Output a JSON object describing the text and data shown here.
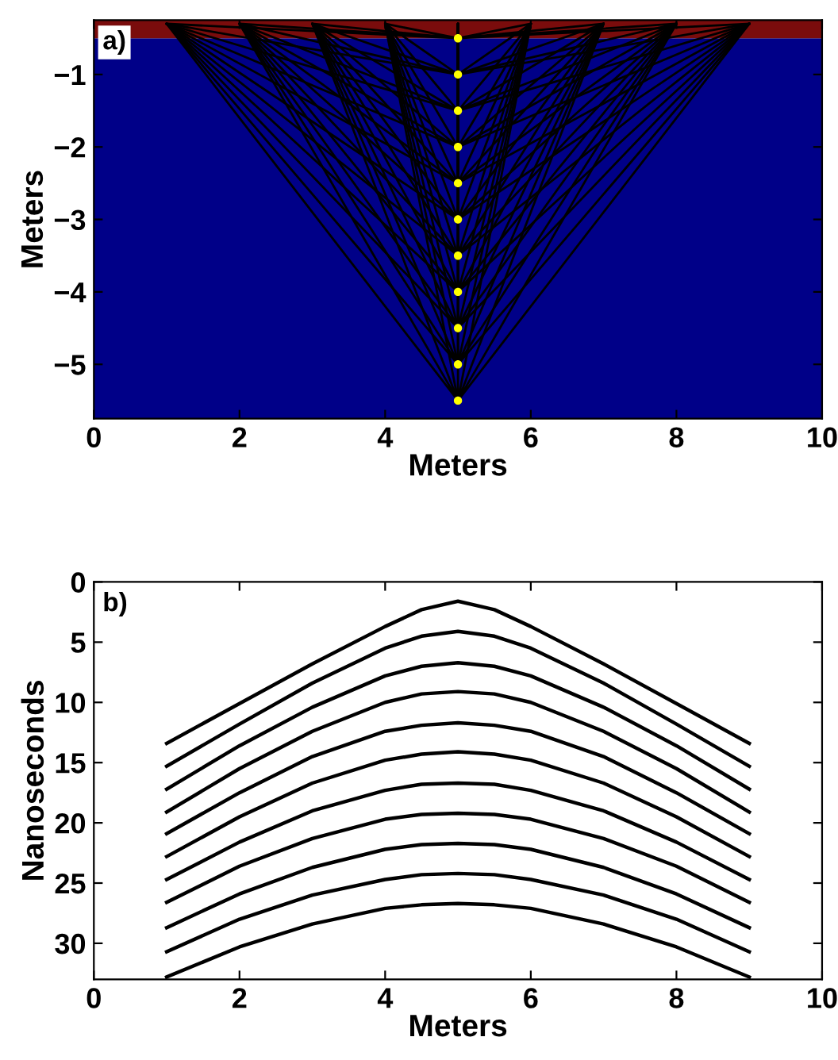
{
  "chart_data": [
    {
      "type": "line",
      "xlabel": "Meters",
      "ylabel": "Meters",
      "annotations": [
        "a)"
      ],
      "xlim": [
        0,
        10
      ],
      "xticks": [
        0,
        2,
        4,
        6,
        8,
        10
      ],
      "ylim": [
        -5.75,
        -0.25
      ],
      "yticks": [
        {
          "value": -5,
          "label": "−5"
        },
        {
          "value": -4,
          "label": "−4"
        },
        {
          "value": -3,
          "label": "−3"
        },
        {
          "value": -2,
          "label": "−2"
        },
        {
          "value": -1,
          "label": "−1"
        }
      ],
      "bands": [
        {
          "axis": "y",
          "from": -5.75,
          "to": -0.5,
          "color": "#000088"
        },
        {
          "axis": "y",
          "from": -0.5,
          "to": -0.25,
          "color": "#7a0c0c"
        }
      ],
      "series": [
        {
          "type": "line",
          "color": "#000000",
          "x": [
            1,
            5,
            2,
            5,
            3,
            5,
            4,
            5,
            5,
            5,
            6,
            5,
            7,
            5,
            8,
            5,
            9
          ],
          "values": [
            -0.3,
            -0.5,
            -0.3,
            -0.5,
            -0.3,
            -0.5,
            -0.3,
            -0.5,
            -0.3,
            -0.5,
            -0.3,
            -0.5,
            -0.3,
            -0.5,
            -0.3,
            -0.5,
            -0.3
          ]
        },
        {
          "type": "line",
          "color": "#000000",
          "x": [
            1,
            5,
            2,
            5,
            3,
            5,
            4,
            5,
            5,
            5,
            6,
            5,
            7,
            5,
            8,
            5,
            9
          ],
          "values": [
            -0.3,
            -1,
            -0.3,
            -1,
            -0.3,
            -1,
            -0.3,
            -1,
            -0.3,
            -1,
            -0.3,
            -1,
            -0.3,
            -1,
            -0.3,
            -1,
            -0.3
          ]
        },
        {
          "type": "line",
          "color": "#000000",
          "x": [
            1,
            5,
            2,
            5,
            3,
            5,
            4,
            5,
            5,
            5,
            6,
            5,
            7,
            5,
            8,
            5,
            9
          ],
          "values": [
            -0.3,
            -1.5,
            -0.3,
            -1.5,
            -0.3,
            -1.5,
            -0.3,
            -1.5,
            -0.3,
            -1.5,
            -0.3,
            -1.5,
            -0.3,
            -1.5,
            -0.3,
            -1.5,
            -0.3
          ]
        },
        {
          "type": "line",
          "color": "#000000",
          "x": [
            1,
            5,
            2,
            5,
            3,
            5,
            4,
            5,
            5,
            5,
            6,
            5,
            7,
            5,
            8,
            5,
            9
          ],
          "values": [
            -0.3,
            -2,
            -0.3,
            -2,
            -0.3,
            -2,
            -0.3,
            -2,
            -0.3,
            -2,
            -0.3,
            -2,
            -0.3,
            -2,
            -0.3,
            -2,
            -0.3
          ]
        },
        {
          "type": "line",
          "color": "#000000",
          "x": [
            1,
            5,
            2,
            5,
            3,
            5,
            4,
            5,
            5,
            5,
            6,
            5,
            7,
            5,
            8,
            5,
            9
          ],
          "values": [
            -0.3,
            -2.5,
            -0.3,
            -2.5,
            -0.3,
            -2.5,
            -0.3,
            -2.5,
            -0.3,
            -2.5,
            -0.3,
            -2.5,
            -0.3,
            -2.5,
            -0.3,
            -2.5,
            -0.3
          ]
        },
        {
          "type": "line",
          "color": "#000000",
          "x": [
            1,
            5,
            2,
            5,
            3,
            5,
            4,
            5,
            5,
            5,
            6,
            5,
            7,
            5,
            8,
            5,
            9
          ],
          "values": [
            -0.3,
            -3,
            -0.3,
            -3,
            -0.3,
            -3,
            -0.3,
            -3,
            -0.3,
            -3,
            -0.3,
            -3,
            -0.3,
            -3,
            -0.3,
            -3,
            -0.3
          ]
        },
        {
          "type": "line",
          "color": "#000000",
          "x": [
            1,
            5,
            2,
            5,
            3,
            5,
            4,
            5,
            5,
            5,
            6,
            5,
            7,
            5,
            8,
            5,
            9
          ],
          "values": [
            -0.3,
            -3.5,
            -0.3,
            -3.5,
            -0.3,
            -3.5,
            -0.3,
            -3.5,
            -0.3,
            -3.5,
            -0.3,
            -3.5,
            -0.3,
            -3.5,
            -0.3,
            -3.5,
            -0.3
          ]
        },
        {
          "type": "line",
          "color": "#000000",
          "x": [
            1,
            5,
            2,
            5,
            3,
            5,
            4,
            5,
            5,
            5,
            6,
            5,
            7,
            5,
            8,
            5,
            9
          ],
          "values": [
            -0.3,
            -4,
            -0.3,
            -4,
            -0.3,
            -4,
            -0.3,
            -4,
            -0.3,
            -4,
            -0.3,
            -4,
            -0.3,
            -4,
            -0.3,
            -4,
            -0.3
          ]
        },
        {
          "type": "line",
          "color": "#000000",
          "x": [
            1,
            5,
            2,
            5,
            3,
            5,
            4,
            5,
            5,
            5,
            6,
            5,
            7,
            5,
            8,
            5,
            9
          ],
          "values": [
            -0.3,
            -4.5,
            -0.3,
            -4.5,
            -0.3,
            -4.5,
            -0.3,
            -4.5,
            -0.3,
            -4.5,
            -0.3,
            -4.5,
            -0.3,
            -4.5,
            -0.3,
            -4.5,
            -0.3
          ]
        },
        {
          "type": "line",
          "color": "#000000",
          "x": [
            1,
            5,
            2,
            5,
            3,
            5,
            4,
            5,
            5,
            5,
            6,
            5,
            7,
            5,
            8,
            5,
            9
          ],
          "values": [
            -0.3,
            -5,
            -0.3,
            -5,
            -0.3,
            -5,
            -0.3,
            -5,
            -0.3,
            -5,
            -0.3,
            -5,
            -0.3,
            -5,
            -0.3,
            -5,
            -0.3
          ]
        },
        {
          "type": "line",
          "color": "#000000",
          "x": [
            1,
            5,
            2,
            5,
            3,
            5,
            4,
            5,
            5,
            5,
            6,
            5,
            7,
            5,
            8,
            5,
            9
          ],
          "values": [
            -0.3,
            -5.5,
            -0.3,
            -5.5,
            -0.3,
            -5.5,
            -0.3,
            -5.5,
            -0.3,
            -5.5,
            -0.3,
            -5.5,
            -0.3,
            -5.5,
            -0.3,
            -5.5,
            -0.3
          ]
        },
        {
          "type": "scatter",
          "color": "#ffff00",
          "marker": "circle",
          "x": [
            5,
            5,
            5,
            5,
            5,
            5,
            5,
            5,
            5,
            5,
            5
          ],
          "values": [
            -0.5,
            -1,
            -1.5,
            -2,
            -2.5,
            -3,
            -3.5,
            -4,
            -4.5,
            -5,
            -5.5
          ]
        }
      ]
    },
    {
      "type": "line",
      "xlabel": "Meters",
      "ylabel": "Nanoseconds",
      "annotations": [
        "b)"
      ],
      "xlim": [
        0,
        10
      ],
      "xticks": [
        0,
        2,
        4,
        6,
        8,
        10
      ],
      "ylim": [
        33,
        0
      ],
      "yticks": [
        0,
        5,
        10,
        15,
        20,
        25,
        30
      ],
      "x": [
        1,
        2,
        3,
        4,
        4.5,
        5,
        5.5,
        6,
        7,
        8,
        9
      ],
      "series": [
        {
          "color": "#000000",
          "values": [
            13.4,
            10.1,
            6.8,
            3.7,
            2.3,
            1.6,
            2.3,
            3.7,
            6.8,
            10.1,
            13.4
          ]
        },
        {
          "color": "#000000",
          "values": [
            15.3,
            11.8,
            8.4,
            5.5,
            4.5,
            4.1,
            4.5,
            5.5,
            8.4,
            11.8,
            15.3
          ]
        },
        {
          "color": "#000000",
          "values": [
            17.2,
            13.6,
            10.4,
            7.8,
            7.0,
            6.7,
            7.0,
            7.8,
            10.4,
            13.6,
            17.2
          ]
        },
        {
          "color": "#000000",
          "values": [
            19.1,
            15.5,
            12.4,
            10.0,
            9.3,
            9.1,
            9.3,
            10.0,
            12.4,
            15.5,
            19.1
          ]
        },
        {
          "color": "#000000",
          "values": [
            20.9,
            17.5,
            14.5,
            12.4,
            11.9,
            11.7,
            11.9,
            12.4,
            14.5,
            17.5,
            20.9
          ]
        },
        {
          "color": "#000000",
          "values": [
            22.8,
            19.5,
            16.7,
            14.8,
            14.3,
            14.1,
            14.3,
            14.8,
            16.7,
            19.5,
            22.8
          ]
        },
        {
          "color": "#000000",
          "values": [
            24.7,
            21.6,
            19.0,
            17.3,
            16.8,
            16.7,
            16.8,
            17.3,
            19.0,
            21.6,
            24.7
          ]
        },
        {
          "color": "#000000",
          "values": [
            26.6,
            23.6,
            21.3,
            19.7,
            19.3,
            19.2,
            19.3,
            19.7,
            21.3,
            23.6,
            26.6
          ]
        },
        {
          "color": "#000000",
          "values": [
            28.7,
            25.9,
            23.7,
            22.2,
            21.8,
            21.7,
            21.8,
            22.2,
            23.7,
            25.9,
            28.7
          ]
        },
        {
          "color": "#000000",
          "values": [
            30.7,
            28.0,
            26.0,
            24.7,
            24.3,
            24.2,
            24.3,
            24.7,
            26.0,
            28.0,
            30.7
          ]
        },
        {
          "color": "#000000",
          "values": [
            32.8,
            30.3,
            28.4,
            27.1,
            26.8,
            26.7,
            26.8,
            27.1,
            28.4,
            30.3,
            32.8
          ]
        }
      ]
    }
  ]
}
